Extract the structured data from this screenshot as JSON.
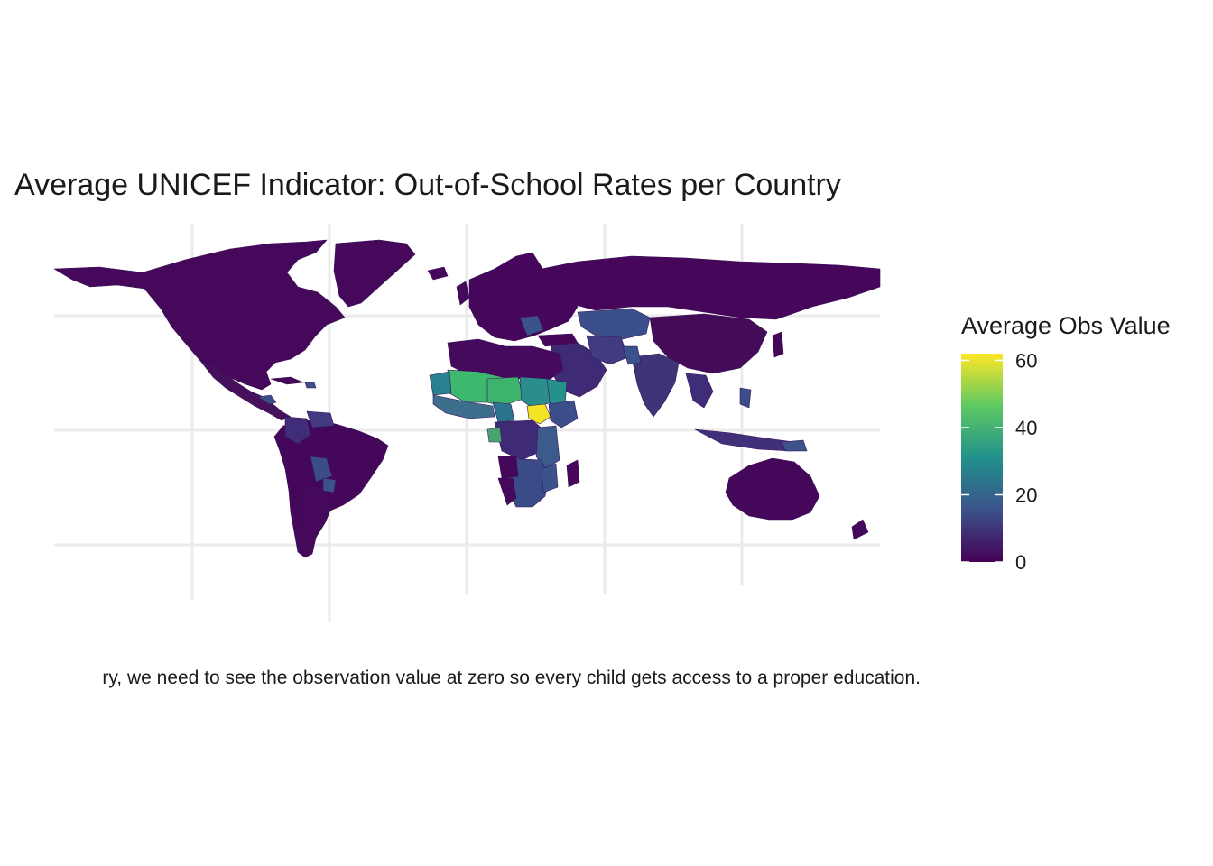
{
  "title": "Average UNICEF Indicator: Out-of-School Rates per Country",
  "caption": "ry, we need to see the observation value at zero so every child gets access to a proper education.",
  "legend": {
    "title": "Average Obs Value",
    "ticks": [
      "0",
      "20",
      "40",
      "60"
    ],
    "tick_values": [
      0,
      20,
      40,
      60
    ],
    "range": [
      0,
      62
    ],
    "colors": [
      "#440154",
      "#3b528b",
      "#21918c",
      "#5ec962",
      "#fde725"
    ]
  },
  "colors": {
    "grid": "#ebebeb",
    "text": "#1a1a1a"
  },
  "chart_data": {
    "type": "heatmap",
    "title": "Average UNICEF Indicator: Out-of-School Rates per Country",
    "legend_title": "Average Obs Value",
    "scale": "viridis",
    "legend_placement": "right",
    "grid": true
  }
}
